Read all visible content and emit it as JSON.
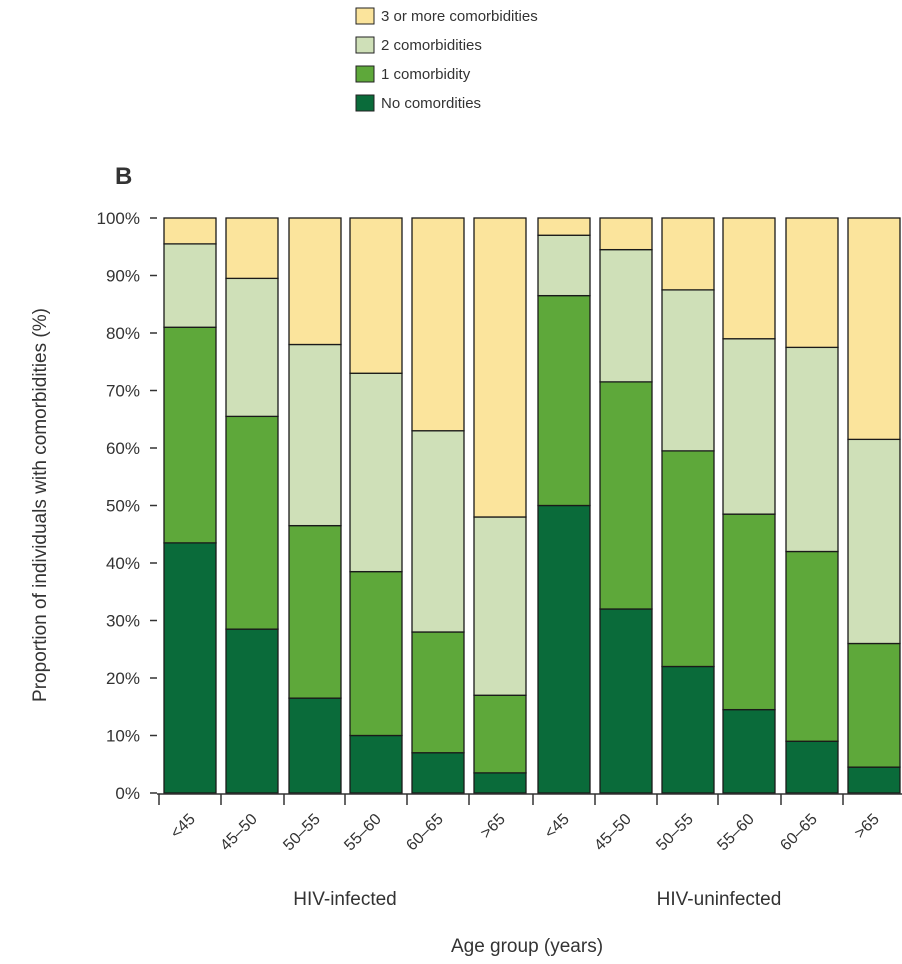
{
  "chart_data": {
    "type": "bar",
    "stacked": true,
    "panel_label": "B",
    "ylabel": "Proportion of individuals with comorbidities (%)",
    "xlabel": "Age group (years)",
    "ylim": [
      0,
      100
    ],
    "yticks": [
      "0%",
      "10%",
      "20%",
      "30%",
      "40%",
      "50%",
      "60%",
      "70%",
      "80%",
      "90%",
      "100%"
    ],
    "groups": [
      {
        "label": "HIV-infected",
        "categories": [
          "<45",
          "45–50",
          "50–55",
          "55–60",
          "60–65",
          ">65"
        ]
      },
      {
        "label": "HIV-uninfected",
        "categories": [
          "<45",
          "45–50",
          "50–55",
          "55–60",
          "60–65",
          ">65"
        ]
      }
    ],
    "series": [
      {
        "name": "No comordities",
        "color": "#0a6b3a",
        "values": [
          43.5,
          28.5,
          16.5,
          10,
          7,
          3.5,
          50,
          32,
          22,
          14.5,
          9,
          4.5
        ]
      },
      {
        "name": "1 comorbidity",
        "color": "#5ea83a",
        "values": [
          37.5,
          37,
          30,
          28.5,
          21,
          13.5,
          36.5,
          39.5,
          37.5,
          34,
          33,
          21.5
        ]
      },
      {
        "name": "2 comorbidities",
        "color": "#cfe0b8",
        "values": [
          14.5,
          24,
          31.5,
          34.5,
          35,
          31,
          10.5,
          23,
          28,
          30.5,
          35.5,
          35.5
        ]
      },
      {
        "name": "3 or more comorbidities",
        "color": "#fbe49c",
        "values": [
          4.5,
          10.5,
          22,
          27,
          37,
          52,
          3,
          5.5,
          12.5,
          21,
          22.5,
          38.5
        ]
      }
    ],
    "legend": {
      "placement": "top-center",
      "order": [
        "3 or more comorbidities",
        "2 comorbidities",
        "1 comorbidity",
        "No comordities"
      ]
    }
  }
}
